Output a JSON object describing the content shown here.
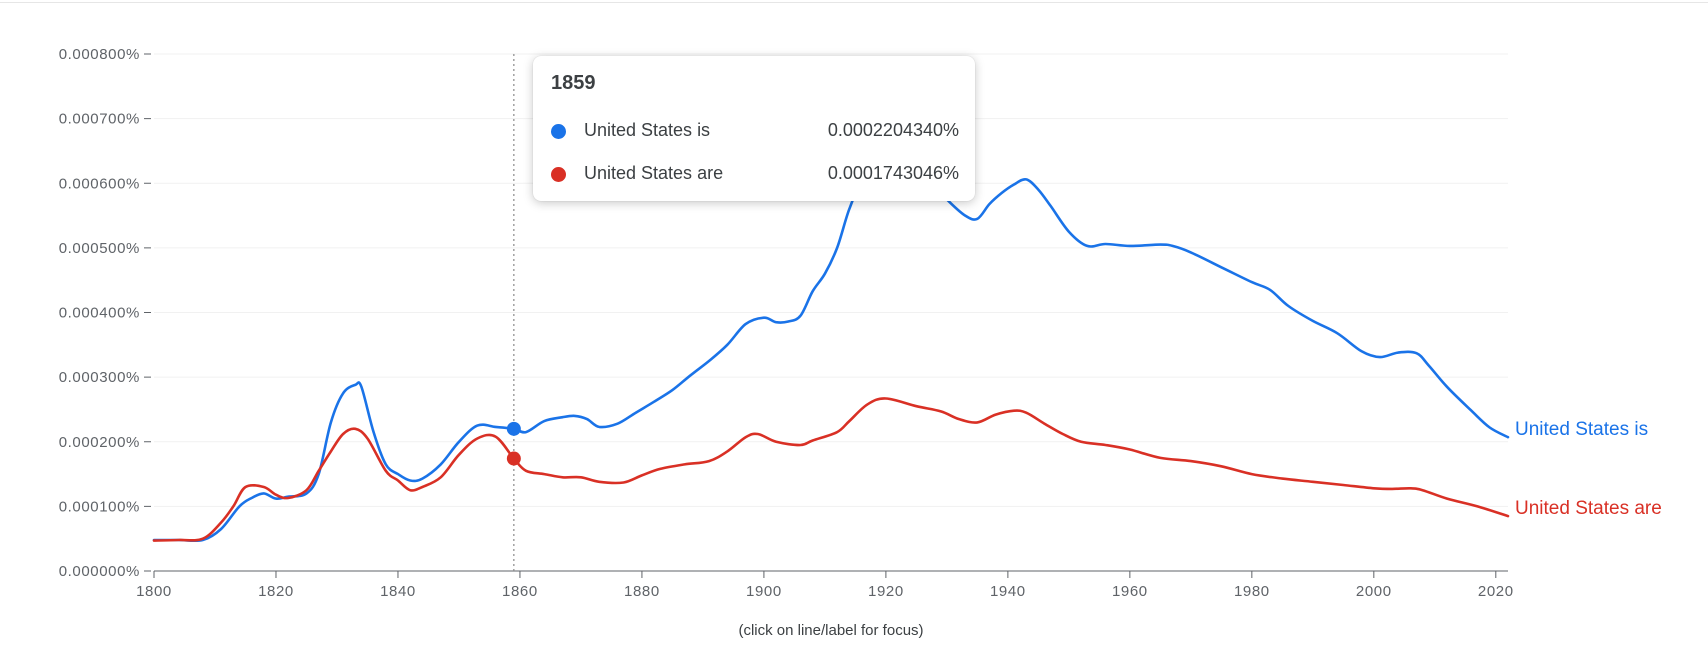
{
  "chart_data": {
    "type": "line",
    "ylim": [
      0,
      0.0008
    ],
    "xlim": [
      1800,
      2022
    ],
    "y_ticks": [
      0,
      0.0001,
      0.0002,
      0.0003,
      0.0004,
      0.0005,
      0.0006,
      0.0007,
      0.0008
    ],
    "y_tick_labels": [
      "0.000000%",
      "0.000100%",
      "0.000200%",
      "0.000300%",
      "0.000400%",
      "0.000500%",
      "0.000600%",
      "0.000700%",
      "0.000800%"
    ],
    "x_ticks": [
      1800,
      1820,
      1840,
      1860,
      1880,
      1900,
      1920,
      1940,
      1960,
      1980,
      2000,
      2020
    ],
    "x_tick_labels": [
      "1800",
      "1820",
      "1840",
      "1860",
      "1880",
      "1900",
      "1920",
      "1940",
      "1960",
      "1980",
      "2000",
      "2020"
    ],
    "grid": true,
    "hover_year": 1859,
    "series": [
      {
        "name": "United States is",
        "color": "#1a73e8",
        "points": [
          [
            1800,
            4.8e-05
          ],
          [
            1804,
            4.8e-05
          ],
          [
            1808,
            4.8e-05
          ],
          [
            1811,
            6.5e-05
          ],
          [
            1814,
            0.0001
          ],
          [
            1816,
            0.000113
          ],
          [
            1818,
            0.00012
          ],
          [
            1820,
            0.000112
          ],
          [
            1822,
            0.000115
          ],
          [
            1825,
            0.00012
          ],
          [
            1827,
            0.00015
          ],
          [
            1829,
            0.00023
          ],
          [
            1831,
            0.000275
          ],
          [
            1833,
            0.000288
          ],
          [
            1834,
            0.000285
          ],
          [
            1836,
            0.000215
          ],
          [
            1838,
            0.000165
          ],
          [
            1840,
            0.00015
          ],
          [
            1842,
            0.00014
          ],
          [
            1844,
            0.000143
          ],
          [
            1847,
            0.000165
          ],
          [
            1850,
            0.0002
          ],
          [
            1853,
            0.000225
          ],
          [
            1856,
            0.000223
          ],
          [
            1859,
            0.00022
          ],
          [
            1861,
            0.000215
          ],
          [
            1864,
            0.000232
          ],
          [
            1867,
            0.000238
          ],
          [
            1869,
            0.00024
          ],
          [
            1871,
            0.000235
          ],
          [
            1873,
            0.000223
          ],
          [
            1876,
            0.000228
          ],
          [
            1879,
            0.000245
          ],
          [
            1882,
            0.000262
          ],
          [
            1885,
            0.00028
          ],
          [
            1888,
            0.000303
          ],
          [
            1891,
            0.000325
          ],
          [
            1894,
            0.00035
          ],
          [
            1897,
            0.000382
          ],
          [
            1900,
            0.000392
          ],
          [
            1902,
            0.000385
          ],
          [
            1904,
            0.000386
          ],
          [
            1906,
            0.000395
          ],
          [
            1908,
            0.000433
          ],
          [
            1910,
            0.00046
          ],
          [
            1912,
            0.0005
          ],
          [
            1914,
            0.00056
          ],
          [
            1916,
            0.0006
          ],
          [
            1919,
            0.00062
          ],
          [
            1922,
            0.000622
          ],
          [
            1926,
            0.000616
          ],
          [
            1930,
            0.000575
          ],
          [
            1933,
            0.00055
          ],
          [
            1935,
            0.000545
          ],
          [
            1937,
            0.000568
          ],
          [
            1939,
            0.000585
          ],
          [
            1941,
            0.000598
          ],
          [
            1943,
            0.000606
          ],
          [
            1945,
            0.00059
          ],
          [
            1947,
            0.000565
          ],
          [
            1950,
            0.000525
          ],
          [
            1953,
            0.000503
          ],
          [
            1956,
            0.000506
          ],
          [
            1960,
            0.000503
          ],
          [
            1965,
            0.000505
          ],
          [
            1967,
            0.000503
          ],
          [
            1970,
            0.000493
          ],
          [
            1975,
            0.00047
          ],
          [
            1980,
            0.000447
          ],
          [
            1983,
            0.000435
          ],
          [
            1986,
            0.00041
          ],
          [
            1990,
            0.000387
          ],
          [
            1994,
            0.000368
          ],
          [
            1998,
            0.00034
          ],
          [
            2001,
            0.000331
          ],
          [
            2004,
            0.000338
          ],
          [
            2007,
            0.000337
          ],
          [
            2009,
            0.000318
          ],
          [
            2012,
            0.000285
          ],
          [
            2016,
            0.000248
          ],
          [
            2019,
            0.000222
          ],
          [
            2022,
            0.000207
          ]
        ]
      },
      {
        "name": "United States are",
        "color": "#d93025",
        "points": [
          [
            1800,
            4.7e-05
          ],
          [
            1804,
            4.8e-05
          ],
          [
            1808,
            5e-05
          ],
          [
            1811,
            7.5e-05
          ],
          [
            1813,
            0.0001
          ],
          [
            1815,
            0.00013
          ],
          [
            1818,
            0.00013
          ],
          [
            1820,
            0.000118
          ],
          [
            1822,
            0.000113
          ],
          [
            1825,
            0.000125
          ],
          [
            1827,
            0.000155
          ],
          [
            1829,
            0.000185
          ],
          [
            1831,
            0.000212
          ],
          [
            1833,
            0.00022
          ],
          [
            1835,
            0.000205
          ],
          [
            1838,
            0.000155
          ],
          [
            1840,
            0.00014
          ],
          [
            1842,
            0.000125
          ],
          [
            1844,
            0.00013
          ],
          [
            1847,
            0.000145
          ],
          [
            1850,
            0.00018
          ],
          [
            1853,
            0.000205
          ],
          [
            1856,
            0.000208
          ],
          [
            1859,
            0.000174
          ],
          [
            1861,
            0.000155
          ],
          [
            1864,
            0.00015
          ],
          [
            1867,
            0.000145
          ],
          [
            1870,
            0.000145
          ],
          [
            1873,
            0.000138
          ],
          [
            1877,
            0.000137
          ],
          [
            1880,
            0.000148
          ],
          [
            1883,
            0.000158
          ],
          [
            1887,
            0.000165
          ],
          [
            1891,
            0.00017
          ],
          [
            1894,
            0.000185
          ],
          [
            1897,
            0.000207
          ],
          [
            1899,
            0.000212
          ],
          [
            1902,
            0.0002
          ],
          [
            1906,
            0.000195
          ],
          [
            1908,
            0.000202
          ],
          [
            1912,
            0.000215
          ],
          [
            1914,
            0.000232
          ],
          [
            1917,
            0.000258
          ],
          [
            1920,
            0.000267
          ],
          [
            1925,
            0.000255
          ],
          [
            1929,
            0.000247
          ],
          [
            1932,
            0.000235
          ],
          [
            1935,
            0.00023
          ],
          [
            1938,
            0.000242
          ],
          [
            1941,
            0.000248
          ],
          [
            1943,
            0.000245
          ],
          [
            1946,
            0.000228
          ],
          [
            1949,
            0.000212
          ],
          [
            1952,
            0.0002
          ],
          [
            1956,
            0.000195
          ],
          [
            1960,
            0.000188
          ],
          [
            1965,
            0.000175
          ],
          [
            1970,
            0.00017
          ],
          [
            1975,
            0.000162
          ],
          [
            1980,
            0.00015
          ],
          [
            1985,
            0.000143
          ],
          [
            1990,
            0.000138
          ],
          [
            1995,
            0.000133
          ],
          [
            2000,
            0.000128
          ],
          [
            2003,
            0.000127
          ],
          [
            2006,
            0.000128
          ],
          [
            2008,
            0.000125
          ],
          [
            2012,
            0.000112
          ],
          [
            2017,
            0.0001
          ],
          [
            2022,
            8.5e-05
          ]
        ]
      }
    ]
  },
  "tooltip": {
    "year": "1859",
    "rows": [
      {
        "name": "United States is",
        "value": "0.0002204340%",
        "color": "#1a73e8"
      },
      {
        "name": "United States are",
        "value": "0.0001743046%",
        "color": "#d93025"
      }
    ]
  },
  "footer": {
    "hint": "(click on line/label for focus)"
  }
}
